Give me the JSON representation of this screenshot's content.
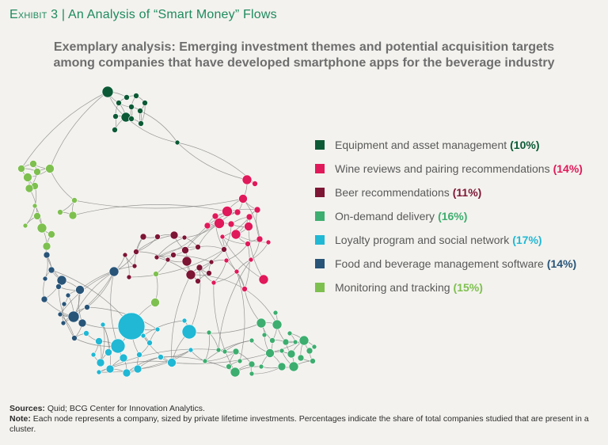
{
  "header": {
    "exhibit_label": "Exhibit 3",
    "separator": "|",
    "exhibit_title": "An Analysis of “Smart Money” Flows"
  },
  "title": {
    "line1": "Exemplary analysis: Emerging investment themes and potential acquisition targets",
    "line2": "among companies that have developed smartphone apps for the beverage industry"
  },
  "legend": [
    {
      "label": "Equipment and asset management",
      "pct": "(10%)",
      "color": "#0b5a35"
    },
    {
      "label": "Wine reviews and pairing recommendations",
      "pct": "(14%)",
      "color": "#e0195a"
    },
    {
      "label": "Beer recommendations",
      "pct": "(11%)",
      "color": "#7d1535"
    },
    {
      "label": "On-demand delivery",
      "pct": "(16%)",
      "color": "#3dae6f"
    },
    {
      "label": "Loyalty program and social network",
      "pct": "(17%)",
      "color": "#20b8d4"
    },
    {
      "label": "Food and beverage management software",
      "pct": "(14%)",
      "color": "#285478"
    },
    {
      "label": "Monitoring and tracking",
      "pct": "(15%)",
      "color": "#7ec04f"
    }
  ],
  "footer": {
    "sources_label": "Sources:",
    "sources_text": "Quid; BCG Center for Innovation Analytics.",
    "note_label": "Note:",
    "note_text": "Each node represents a company, sized by private lifetime investments. Percentages indicate the share of total companies studied that are present in a cluster."
  }
}
